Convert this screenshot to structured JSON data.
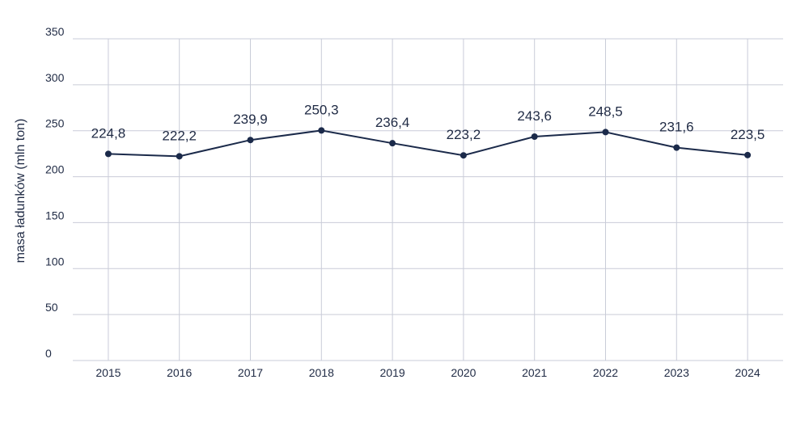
{
  "chart_data": {
    "type": "line",
    "title": "",
    "xlabel": "",
    "ylabel": "masa ładunków (mln ton)",
    "categories": [
      "2015",
      "2016",
      "2017",
      "2018",
      "2019",
      "2020",
      "2021",
      "2022",
      "2023",
      "2024"
    ],
    "series": [
      {
        "values": [
          224.8,
          222.2,
          239.9,
          250.3,
          236.4,
          223.2,
          243.6,
          248.5,
          231.6,
          223.5
        ],
        "data_labels": [
          "224,8",
          "222,2",
          "239,9",
          "250,3",
          "236,4",
          "223,2",
          "243,6",
          "248,5",
          "231,6",
          "223,5"
        ],
        "color": "#1b2a4a"
      }
    ],
    "yticks": [
      "0",
      "50",
      "100",
      "150",
      "200",
      "250",
      "300",
      "350"
    ],
    "ylim": [
      0,
      350
    ],
    "grid": true,
    "colors": {
      "line": "#1b2a4a",
      "grid": "#c9ccd8",
      "text": "#1f2a44"
    }
  }
}
